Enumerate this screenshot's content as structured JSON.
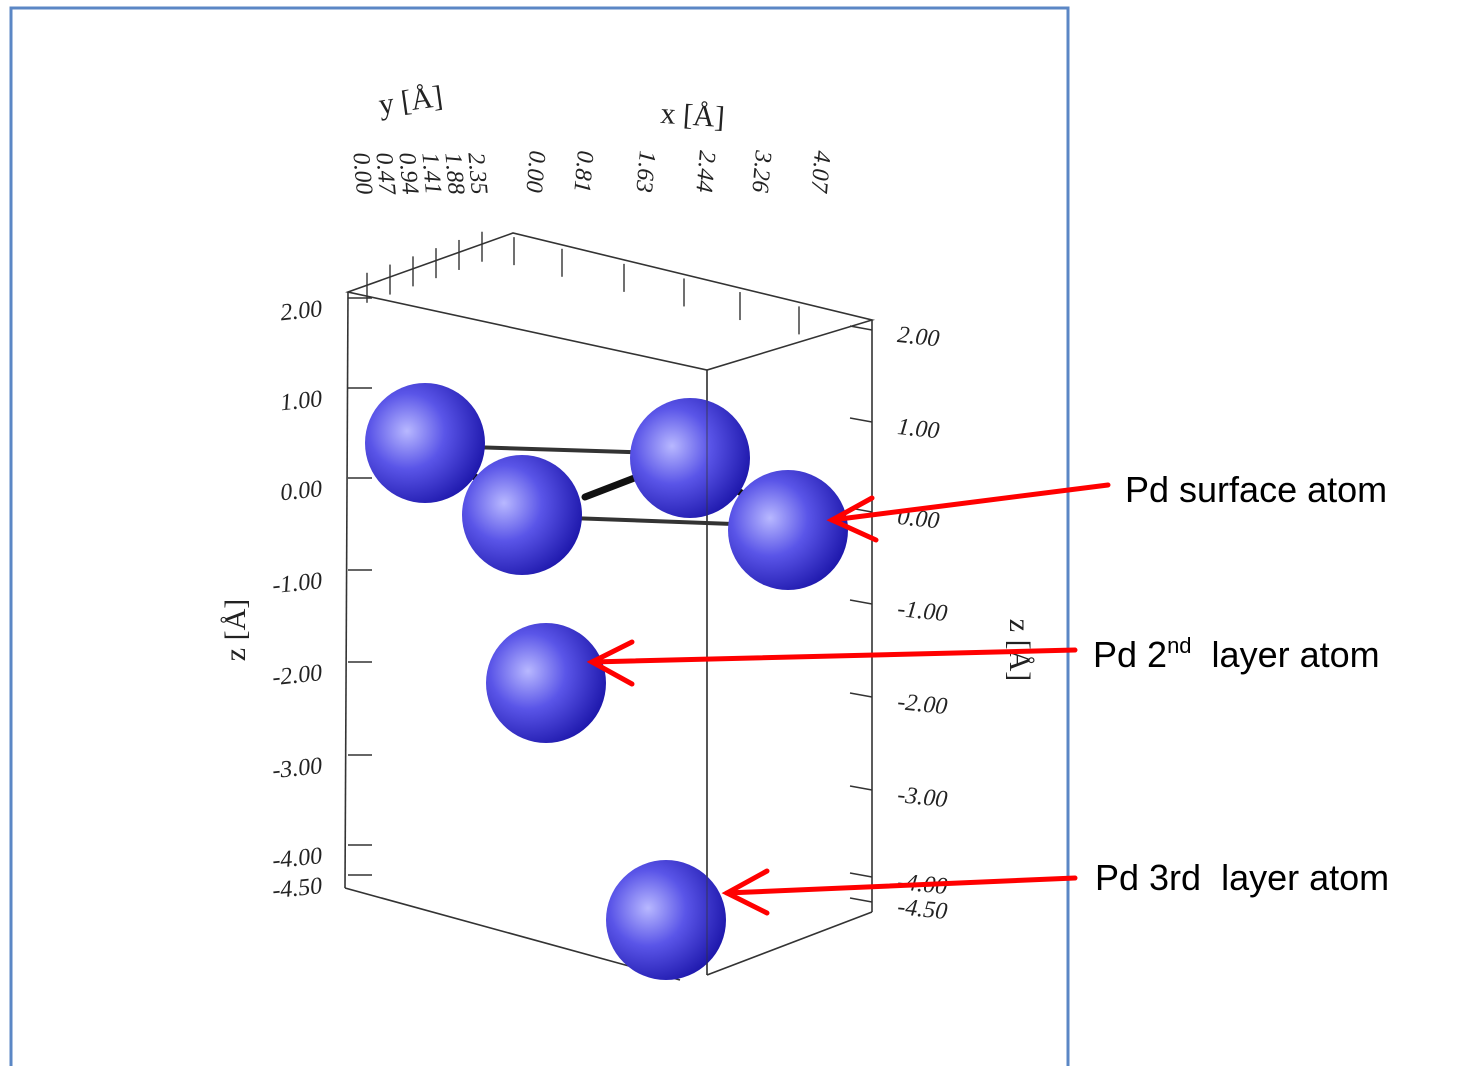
{
  "plot": {
    "x_axis": {
      "label": "x [Å]",
      "ticks": [
        "0.00",
        "0.81",
        "1.63",
        "2.44",
        "3.26",
        "4.07"
      ]
    },
    "y_axis": {
      "label": "y [Å]",
      "ticks": [
        "0.00",
        "0.47",
        "0.94",
        "1.41",
        "1.88",
        "2.35"
      ]
    },
    "z_axis_left": {
      "label": "z [Å]",
      "ticks": [
        "2.00",
        "1.00",
        "0.00",
        "-1.00",
        "-2.00",
        "-3.00",
        "-4.00",
        "-4.50"
      ]
    },
    "z_axis_right": {
      "label": "z [Å]",
      "ticks": [
        "2.00",
        "1.00",
        "0.00",
        "-1.00",
        "-2.00",
        "-3.00",
        "-4.00",
        "-4.50"
      ]
    }
  },
  "annotations": [
    {
      "parts": [
        "Pd surface atom"
      ]
    },
    {
      "parts": [
        "Pd 2",
        "nd",
        "  layer atom"
      ]
    },
    {
      "parts": [
        "Pd 3rd  layer atom"
      ]
    }
  ]
}
